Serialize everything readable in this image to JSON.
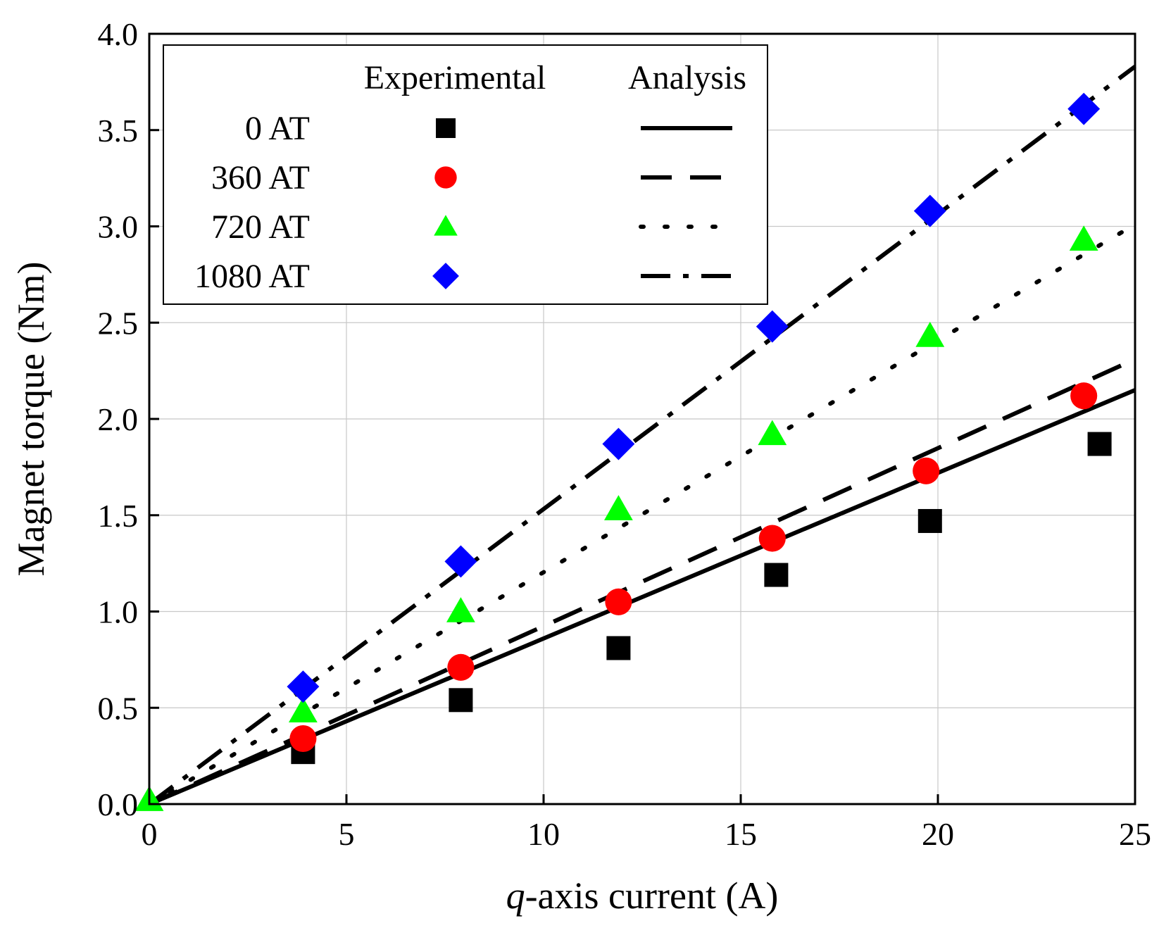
{
  "chart_data": {
    "type": "scatter",
    "xlabel_italic": "q",
    "xlabel_rest": "-axis current (A)",
    "ylabel": "Magnet torque (Nm)",
    "xlim": [
      0,
      25
    ],
    "ylim": [
      0,
      4.0
    ],
    "xticks": [
      "0",
      "5",
      "10",
      "15",
      "20",
      "25"
    ],
    "yticks": [
      "0.0",
      "0.5",
      "1.0",
      "1.5",
      "2.0",
      "2.5",
      "3.0",
      "3.5",
      "4.0"
    ],
    "grid": true,
    "legend": {
      "position": "top-left",
      "header_experimental": "Experimental",
      "header_analysis": "Analysis"
    },
    "series": [
      {
        "name": "0 AT",
        "marker": "square",
        "marker_color": "#000000",
        "line_style": "solid",
        "experimental": {
          "x": [
            3.9,
            7.9,
            11.9,
            15.9,
            19.8,
            24.1
          ],
          "y": [
            0.27,
            0.54,
            0.81,
            1.19,
            1.47,
            1.87
          ]
        },
        "analysis": {
          "x": [
            0,
            25
          ],
          "y": [
            0,
            2.15
          ]
        }
      },
      {
        "name": "360 AT",
        "marker": "circle",
        "marker_color": "#ff0000",
        "line_style": "dashed",
        "experimental": {
          "x": [
            3.9,
            7.9,
            11.9,
            15.8,
            19.7,
            23.7
          ],
          "y": [
            0.34,
            0.71,
            1.05,
            1.38,
            1.73,
            2.12
          ]
        },
        "analysis": {
          "x": [
            0,
            25
          ],
          "y": [
            0,
            2.31
          ]
        }
      },
      {
        "name": "720 AT",
        "marker": "triangle",
        "marker_color": "#00ff00",
        "line_style": "dotted",
        "experimental": {
          "x": [
            0,
            3.9,
            7.9,
            11.9,
            15.8,
            19.8,
            23.7
          ],
          "y": [
            0.02,
            0.48,
            1.0,
            1.53,
            1.92,
            2.43,
            2.93
          ]
        },
        "analysis": {
          "x": [
            0,
            25
          ],
          "y": [
            0,
            3.01
          ]
        }
      },
      {
        "name": "1080 AT",
        "marker": "diamond",
        "marker_color": "#0000ff",
        "line_style": "dashdot",
        "experimental": {
          "x": [
            3.9,
            7.9,
            11.9,
            15.8,
            19.8,
            23.7
          ],
          "y": [
            0.61,
            1.26,
            1.87,
            2.48,
            3.08,
            3.61
          ]
        },
        "analysis": {
          "x": [
            0,
            25
          ],
          "y": [
            0,
            3.83
          ]
        }
      }
    ]
  }
}
